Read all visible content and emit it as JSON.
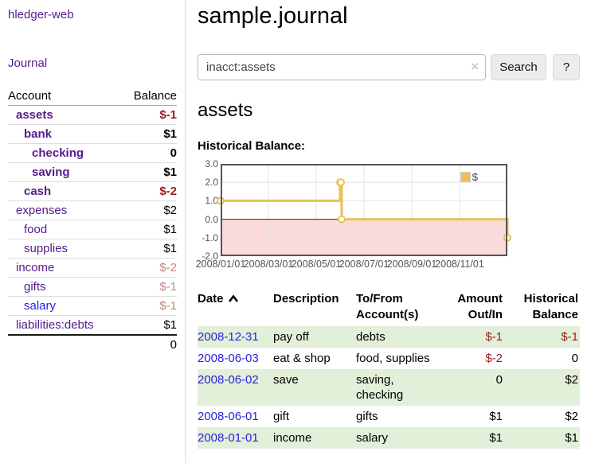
{
  "sidebar": {
    "app_title": "hledger-web",
    "nav": {
      "journal": "Journal"
    },
    "accounts_table": {
      "headers": {
        "account": "Account",
        "balance": "Balance"
      },
      "rows": [
        {
          "name": "assets",
          "balance": "$-1"
        },
        {
          "name": "bank",
          "balance": "$1"
        },
        {
          "name": "checking",
          "balance": "0"
        },
        {
          "name": "saving",
          "balance": "$1"
        },
        {
          "name": "cash",
          "balance": "$-2"
        },
        {
          "name": "expenses",
          "balance": "$2"
        },
        {
          "name": "food",
          "balance": "$1"
        },
        {
          "name": "supplies",
          "balance": "$1"
        },
        {
          "name": "income",
          "balance": "$-2"
        },
        {
          "name": "gifts",
          "balance": "$-1"
        },
        {
          "name": "salary",
          "balance": "$-1"
        },
        {
          "name": "liabilities:debts",
          "balance": "$1"
        }
      ],
      "total": "0"
    }
  },
  "main": {
    "title": "sample.journal",
    "search": {
      "value": "inacct:assets",
      "clear_icon": "×",
      "search_button": "Search",
      "help_button": "?"
    },
    "account_heading": "assets",
    "chart_label": "Historical Balance:"
  },
  "chart_data": {
    "type": "line",
    "title": "Historical Balance",
    "legend_label": "$",
    "legend_position": "top-right",
    "x_ticks": [
      "2008/01/01",
      "2008/03/01",
      "2008/05/01",
      "2008/07/01",
      "2008/09/01",
      "2008/11/01"
    ],
    "y_ticks": [
      3.0,
      2.0,
      1.0,
      0.0,
      -1.0,
      -2.0
    ],
    "ylim": [
      -2,
      3
    ],
    "xlim_dates": [
      "2008-01-01",
      "2009-01-01"
    ],
    "grid": true,
    "series": [
      {
        "name": "$",
        "step": true,
        "points": [
          {
            "date": "2008-01-01",
            "value": 1
          },
          {
            "date": "2008-06-01",
            "value": 2
          },
          {
            "date": "2008-06-02",
            "value": 2
          },
          {
            "date": "2008-06-03",
            "value": 0
          },
          {
            "date": "2008-12-31",
            "value": -1
          }
        ]
      }
    ],
    "line_color": "#e8c254",
    "marker_fill": "#ffffff",
    "grid_color": "#e6e6e6",
    "border_color": "#545454",
    "zero_line_color": "#8b0000",
    "negative_region_color": "#fbdada",
    "axis_label_color": "#545454"
  },
  "register_table": {
    "headers": {
      "date": "Date",
      "description": "Description",
      "tofrom": "To/From Account(s)",
      "amount": "Amount Out/In",
      "balance": "Historical Balance"
    },
    "rows": [
      {
        "date": "2008-12-31",
        "description": "pay off",
        "accounts": "debts",
        "amount": "$-1",
        "balance": "$-1"
      },
      {
        "date": "2008-06-03",
        "description": "eat & shop",
        "accounts": "food, supplies",
        "amount": "$-2",
        "balance": "0"
      },
      {
        "date": "2008-06-02",
        "description": "save",
        "accounts": "saving, checking",
        "amount": "0",
        "balance": "$2"
      },
      {
        "date": "2008-06-01",
        "description": "gift",
        "accounts": "gifts",
        "amount": "$1",
        "balance": "$2"
      },
      {
        "date": "2008-01-01",
        "description": "income",
        "accounts": "salary",
        "amount": "$1",
        "balance": "$1"
      }
    ]
  }
}
